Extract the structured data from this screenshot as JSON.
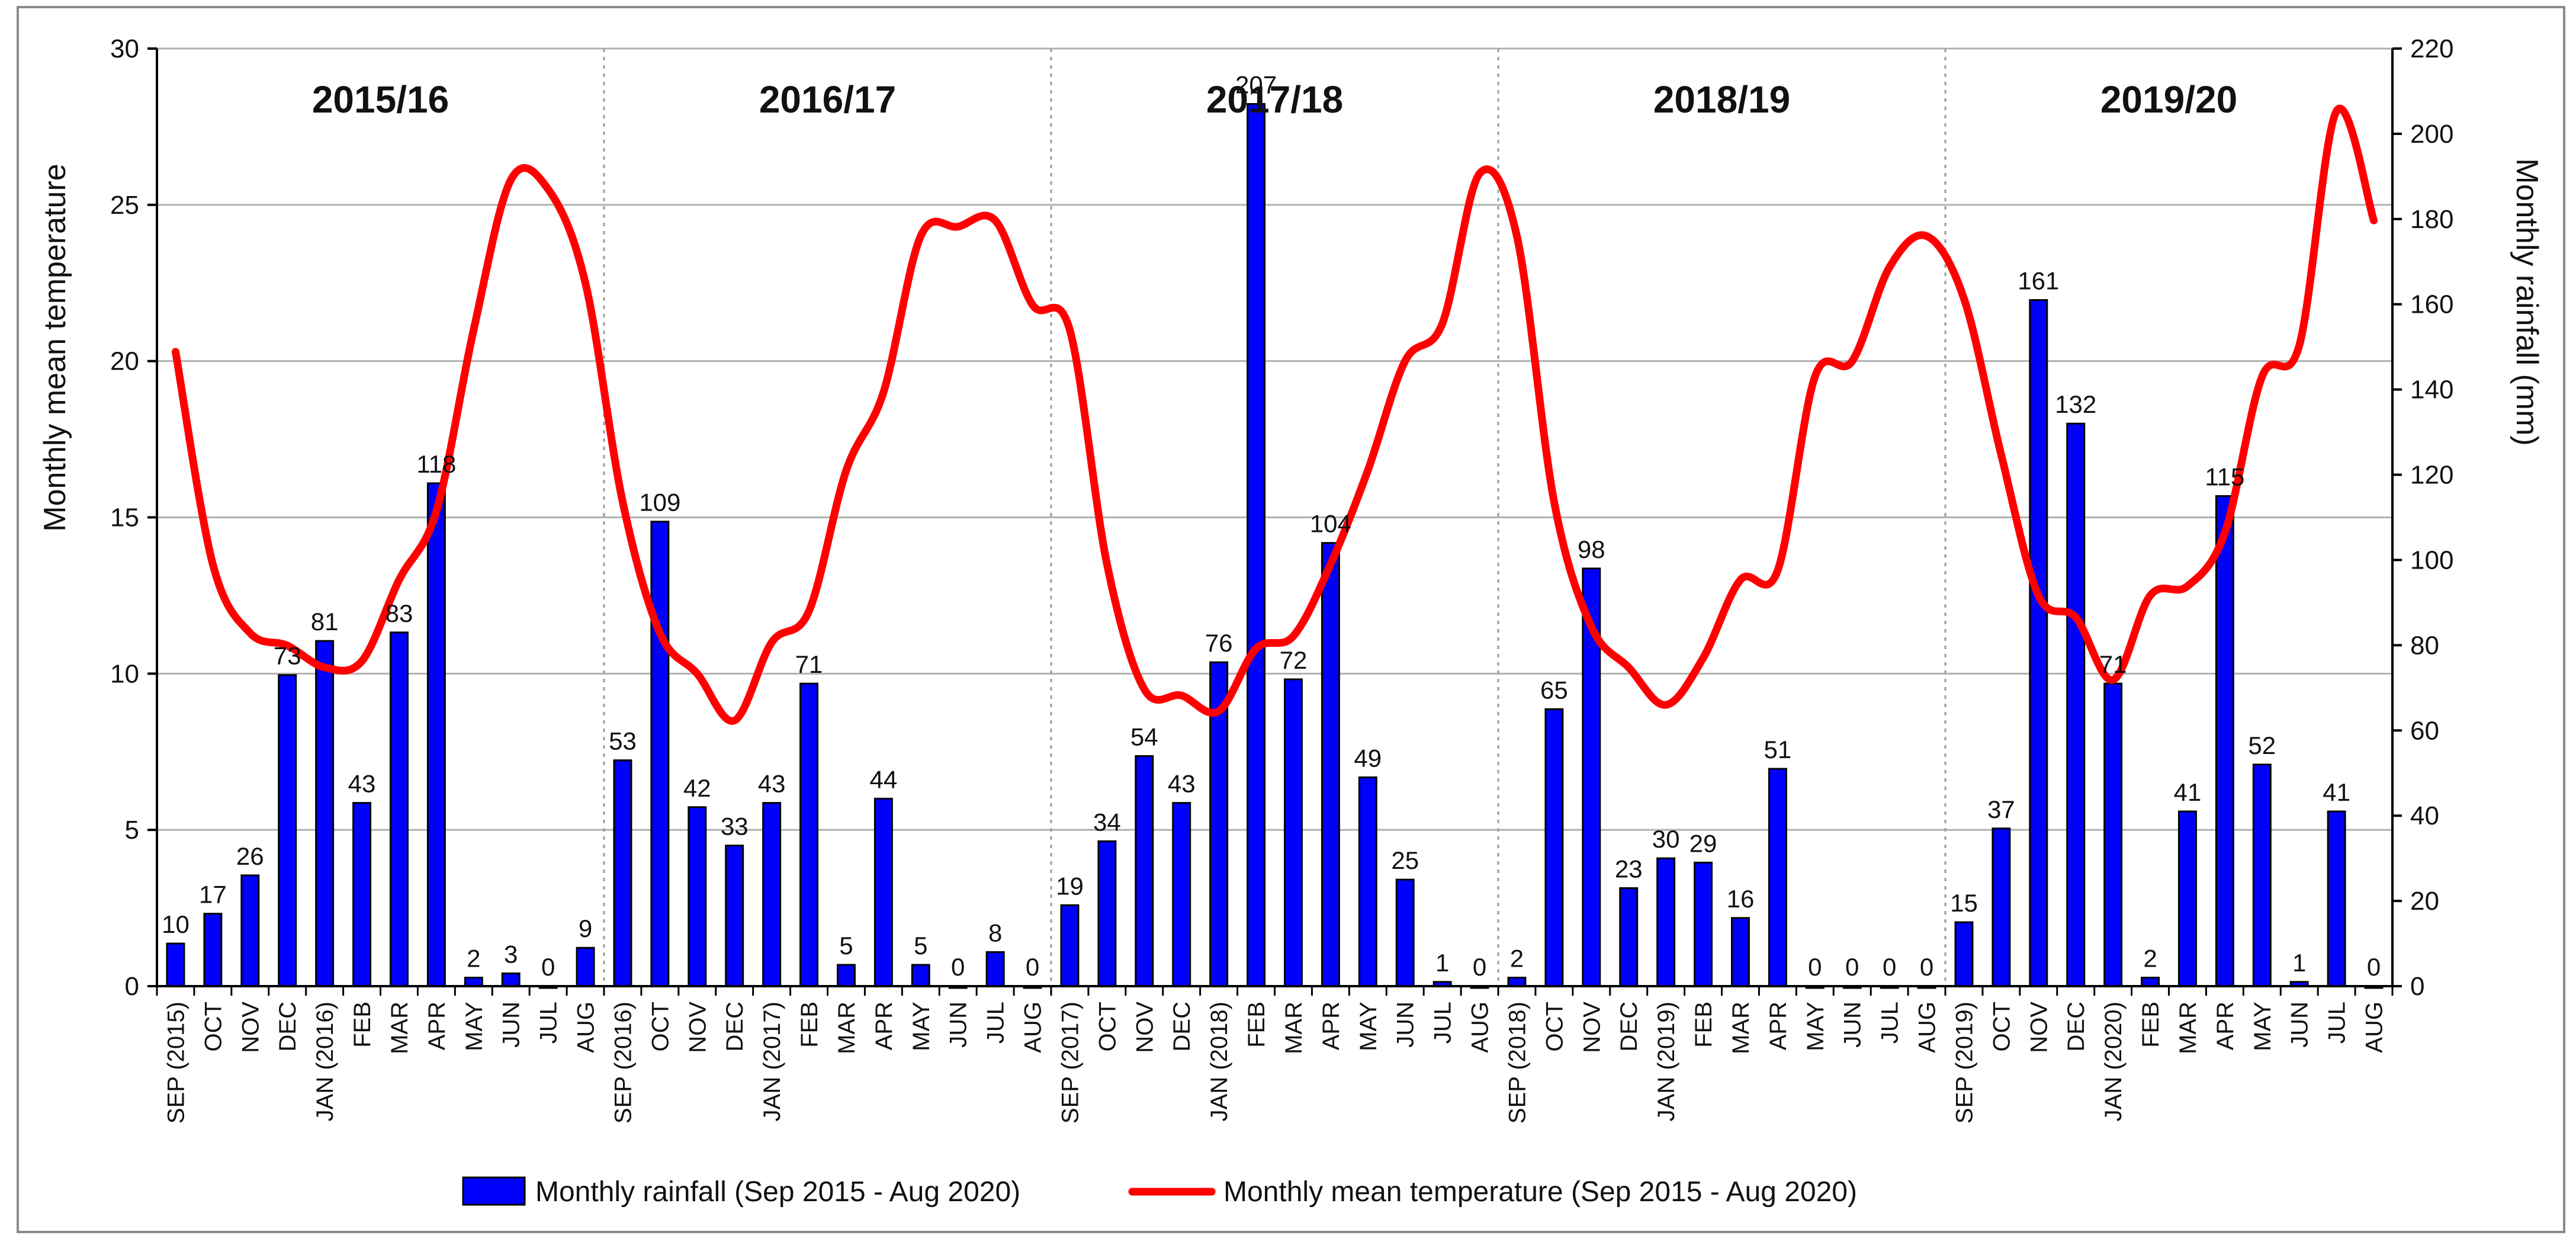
{
  "chart_data": {
    "type": "bar",
    "left_axis_title": "Monthly mean temperature",
    "right_axis_title": "Monthly rainfall (mm)",
    "left_ylim": [
      0,
      30
    ],
    "left_ticks": [
      0,
      5,
      10,
      15,
      20,
      25,
      30
    ],
    "right_ylim": [
      0,
      220
    ],
    "right_ticks": [
      0,
      20,
      40,
      60,
      80,
      100,
      120,
      140,
      160,
      180,
      200,
      220
    ],
    "grid": true,
    "legend_position": "bottom",
    "seasons": [
      "2015/16",
      "2016/17",
      "2017/18",
      "2018/19",
      "2019/20"
    ],
    "categories": [
      "SEP (2015)",
      "OCT",
      "NOV",
      "DEC",
      "JAN (2016)",
      "FEB",
      "MAR",
      "APR",
      "MAY",
      "JUN",
      "JUL",
      "AUG",
      "SEP (2016)",
      "OCT",
      "NOV",
      "DEC",
      "JAN (2017)",
      "FEB",
      "MAR",
      "APR",
      "MAY",
      "JUN",
      "JUL",
      "AUG",
      "SEP (2017)",
      "OCT",
      "NOV",
      "DEC",
      "JAN (2018)",
      "FEB",
      "MAR",
      "APR",
      "MAY",
      "JUN",
      "JUL",
      "AUG",
      "SEP (2018)",
      "OCT",
      "NOV",
      "DEC",
      "JAN (2019)",
      "FEB",
      "MAR",
      "APR",
      "MAY",
      "JUN",
      "JUL",
      "AUG",
      "SEP (2019)",
      "OCT",
      "NOV",
      "DEC",
      "JAN (2020)",
      "FEB",
      "MAR",
      "APR",
      "MAY",
      "JUN",
      "JUL",
      "AUG"
    ],
    "series": [
      {
        "name": "Monthly rainfall (Sep 2015 - Aug 2020)",
        "type": "bar",
        "axis": "right",
        "color": "#0000ff",
        "values": [
          10,
          17,
          26,
          73,
          81,
          43,
          83,
          118,
          2,
          3,
          0,
          9,
          53,
          109,
          42,
          33,
          43,
          71,
          5,
          44,
          5,
          0,
          8,
          0,
          19,
          34,
          54,
          43,
          76,
          207,
          72,
          104,
          49,
          25,
          1,
          0,
          2,
          65,
          98,
          23,
          30,
          29,
          16,
          51,
          0,
          0,
          0,
          0,
          15,
          37,
          161,
          132,
          71,
          2,
          41,
          115,
          52,
          1,
          41,
          0
        ]
      },
      {
        "name": "Monthly mean temperature (Sep 2015 - Aug 2020)",
        "type": "line",
        "axis": "left",
        "color": "#ff0000",
        "values": [
          20.3,
          13.5,
          11.3,
          10.9,
          10.2,
          10.4,
          13.0,
          15.2,
          21.0,
          25.8,
          25.5,
          22.5,
          15.5,
          11.3,
          10.0,
          8.5,
          11.0,
          12.0,
          16.5,
          19.0,
          24.0,
          24.3,
          24.5,
          21.8,
          21.0,
          13.5,
          9.5,
          9.3,
          8.8,
          10.8,
          11.2,
          13.5,
          16.5,
          20.0,
          21.2,
          26.0,
          24.0,
          15.5,
          11.5,
          10.2,
          9.0,
          10.5,
          13.0,
          13.3,
          19.5,
          20.0,
          23.0,
          24.0,
          22.0,
          17.0,
          12.5,
          11.8,
          9.8,
          12.5,
          12.8,
          14.5,
          19.5,
          20.5,
          28.0,
          24.5
        ]
      }
    ]
  }
}
